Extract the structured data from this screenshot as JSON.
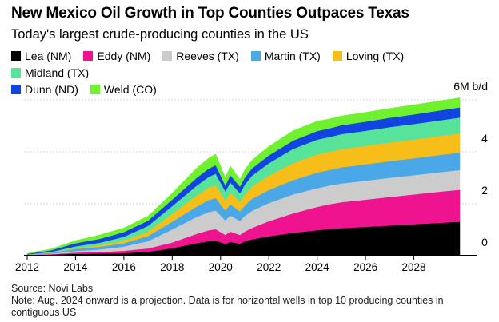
{
  "title": "New Mexico Oil Growth in Top Counties Outpaces Texas",
  "subtitle": "Today's largest crude-producing counties in the US",
  "source": "Source: Novi Labs",
  "note": "Note: Aug. 2024 onward is a projection. Data is for horizontal wells in top 10 producing counties in contiguous US",
  "chart_data": {
    "type": "area",
    "stacked": true,
    "unit_label": "6M b/d",
    "xlim": [
      2012,
      2030
    ],
    "ylim": [
      0,
      6
    ],
    "x_ticks": [
      "2012",
      "2014",
      "2016",
      "2018",
      "2020",
      "2022",
      "2024",
      "2026",
      "2028"
    ],
    "y_ticks": [
      "0",
      "2",
      "4"
    ],
    "legend_position": "top",
    "x": [
      2012.0,
      2013.0,
      2014.0,
      2015.0,
      2016.0,
      2017.0,
      2018.0,
      2019.0,
      2019.5,
      2019.8,
      2020.2,
      2020.4,
      2020.8,
      2021.0,
      2021.3,
      2022.0,
      2023.0,
      2024.0,
      2024.5,
      2025.0,
      2026.0,
      2027.0,
      2028.0,
      2029.0,
      2029.9
    ],
    "series": [
      {
        "name": "Lea (NM)",
        "color": "#000000",
        "values": [
          0.0,
          0.01,
          0.04,
          0.05,
          0.07,
          0.12,
          0.26,
          0.45,
          0.53,
          0.55,
          0.42,
          0.5,
          0.43,
          0.52,
          0.6,
          0.72,
          0.85,
          0.95,
          1.0,
          1.03,
          1.08,
          1.13,
          1.18,
          1.23,
          1.28
        ]
      },
      {
        "name": "Eddy (NM)",
        "color": "#f0138f",
        "values": [
          0.0,
          0.02,
          0.05,
          0.06,
          0.09,
          0.13,
          0.22,
          0.36,
          0.42,
          0.44,
          0.35,
          0.4,
          0.34,
          0.38,
          0.44,
          0.58,
          0.75,
          0.9,
          0.95,
          1.0,
          1.05,
          1.1,
          1.15,
          1.2,
          1.23
        ]
      },
      {
        "name": "Reeves (TX)",
        "color": "#cccccc",
        "values": [
          0.0,
          0.02,
          0.06,
          0.1,
          0.16,
          0.28,
          0.5,
          0.65,
          0.7,
          0.72,
          0.56,
          0.62,
          0.54,
          0.6,
          0.66,
          0.7,
          0.73,
          0.72,
          0.72,
          0.72,
          0.73,
          0.74,
          0.74,
          0.75,
          0.76
        ]
      },
      {
        "name": "Martin (TX)",
        "color": "#4aa8e8",
        "values": [
          0.01,
          0.03,
          0.08,
          0.1,
          0.13,
          0.2,
          0.3,
          0.4,
          0.46,
          0.48,
          0.38,
          0.43,
          0.37,
          0.4,
          0.46,
          0.5,
          0.55,
          0.6,
          0.6,
          0.62,
          0.63,
          0.64,
          0.65,
          0.66,
          0.67
        ]
      },
      {
        "name": "Loving (TX)",
        "color": "#f7bd18",
        "values": [
          0.0,
          0.01,
          0.03,
          0.06,
          0.1,
          0.17,
          0.3,
          0.42,
          0.47,
          0.5,
          0.38,
          0.44,
          0.36,
          0.42,
          0.47,
          0.55,
          0.65,
          0.7,
          0.7,
          0.7,
          0.71,
          0.72,
          0.72,
          0.73,
          0.74
        ]
      },
      {
        "name": "Midland (TX)",
        "color": "#58e39a",
        "values": [
          0.01,
          0.03,
          0.07,
          0.1,
          0.15,
          0.22,
          0.3,
          0.38,
          0.42,
          0.44,
          0.36,
          0.4,
          0.34,
          0.38,
          0.42,
          0.48,
          0.55,
          0.57,
          0.57,
          0.58,
          0.58,
          0.59,
          0.6,
          0.6,
          0.61
        ]
      },
      {
        "name": "Dunn (ND)",
        "color": "#1144e0",
        "values": [
          0.02,
          0.06,
          0.12,
          0.15,
          0.18,
          0.2,
          0.25,
          0.3,
          0.32,
          0.33,
          0.22,
          0.28,
          0.25,
          0.27,
          0.28,
          0.3,
          0.32,
          0.33,
          0.33,
          0.34,
          0.35,
          0.36,
          0.37,
          0.38,
          0.39
        ]
      },
      {
        "name": "Weld (CO)",
        "color": "#6ff12e",
        "values": [
          0.02,
          0.05,
          0.1,
          0.15,
          0.16,
          0.18,
          0.25,
          0.38,
          0.4,
          0.42,
          0.3,
          0.35,
          0.28,
          0.3,
          0.32,
          0.35,
          0.38,
          0.38,
          0.36,
          0.36,
          0.36,
          0.36,
          0.37,
          0.37,
          0.37
        ]
      }
    ]
  }
}
